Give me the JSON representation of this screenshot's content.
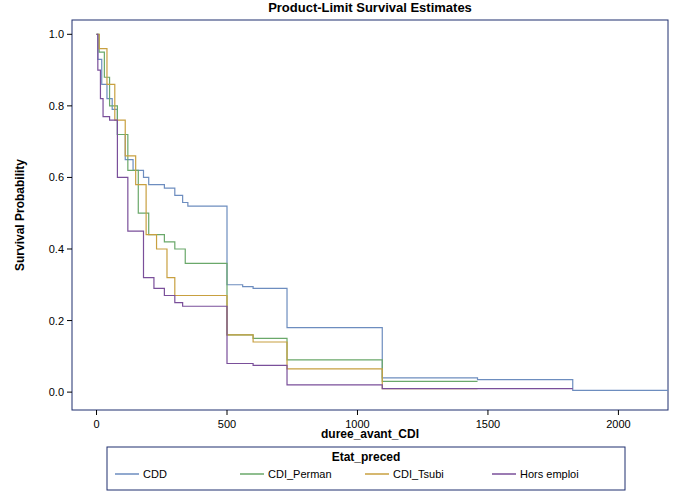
{
  "chart_data": {
    "type": "line",
    "line_style": "step",
    "title": "Product-Limit Survival Estimates",
    "x_label": "duree_avant_CDI",
    "y_label": "Survival Probability",
    "legend": "bottom",
    "legend_title": "Etat_preced",
    "xlim": [
      -94,
      2190
    ],
    "ylim": [
      -0.05,
      1.04
    ],
    "xticks": [
      0,
      500,
      1000,
      1500,
      2000
    ],
    "yticks": [
      {
        "value": 0,
        "label": "0.0"
      },
      {
        "value": 0.2,
        "label": "0.2"
      },
      {
        "value": 0.4,
        "label": "0.4"
      },
      {
        "value": 0.6,
        "label": "0.6"
      },
      {
        "value": 0.8,
        "label": "0.8"
      },
      {
        "value": 1,
        "label": "1.0"
      }
    ],
    "series": [
      {
        "name": "CDD",
        "color": "#6d8dbf",
        "x": [
          0,
          5,
          20,
          40,
          60,
          80,
          110,
          140,
          180,
          200,
          260,
          300,
          330,
          350,
          500,
          560,
          600,
          730,
          1095,
          1460,
          1825,
          2190
        ],
        "values": [
          1,
          0.93,
          0.86,
          0.82,
          0.79,
          0.72,
          0.65,
          0.62,
          0.6,
          0.58,
          0.57,
          0.55,
          0.53,
          0.52,
          0.3,
          0.295,
          0.29,
          0.18,
          0.04,
          0.035,
          0.005,
          0.005
        ]
      },
      {
        "name": "CDI_Perman",
        "color": "#6aa86a",
        "x": [
          0,
          10,
          30,
          50,
          80,
          120,
          160,
          200,
          260,
          300,
          340,
          500,
          600,
          730,
          1095,
          1460
        ],
        "values": [
          1,
          0.95,
          0.88,
          0.8,
          0.72,
          0.62,
          0.5,
          0.44,
          0.42,
          0.4,
          0.36,
          0.16,
          0.15,
          0.09,
          0.03,
          0.03
        ]
      },
      {
        "name": "CDI_Tsubi",
        "color": "#c8a040",
        "x": [
          0,
          10,
          40,
          70,
          110,
          150,
          190,
          230,
          270,
          300,
          500,
          600,
          730,
          1095,
          1460
        ],
        "values": [
          1,
          0.96,
          0.86,
          0.76,
          0.66,
          0.58,
          0.44,
          0.4,
          0.32,
          0.27,
          0.16,
          0.14,
          0.065,
          0.01,
          0.01
        ]
      },
      {
        "name": "Hors emploi",
        "color": "#7a4f9a",
        "x": [
          0,
          5,
          15,
          25,
          50,
          80,
          120,
          180,
          220,
          260,
          300,
          330,
          500,
          600,
          730,
          1095,
          1825
        ],
        "values": [
          1,
          0.9,
          0.82,
          0.77,
          0.76,
          0.6,
          0.45,
          0.32,
          0.29,
          0.27,
          0.25,
          0.24,
          0.08,
          0.075,
          0.02,
          0.01,
          0.01
        ]
      }
    ]
  }
}
